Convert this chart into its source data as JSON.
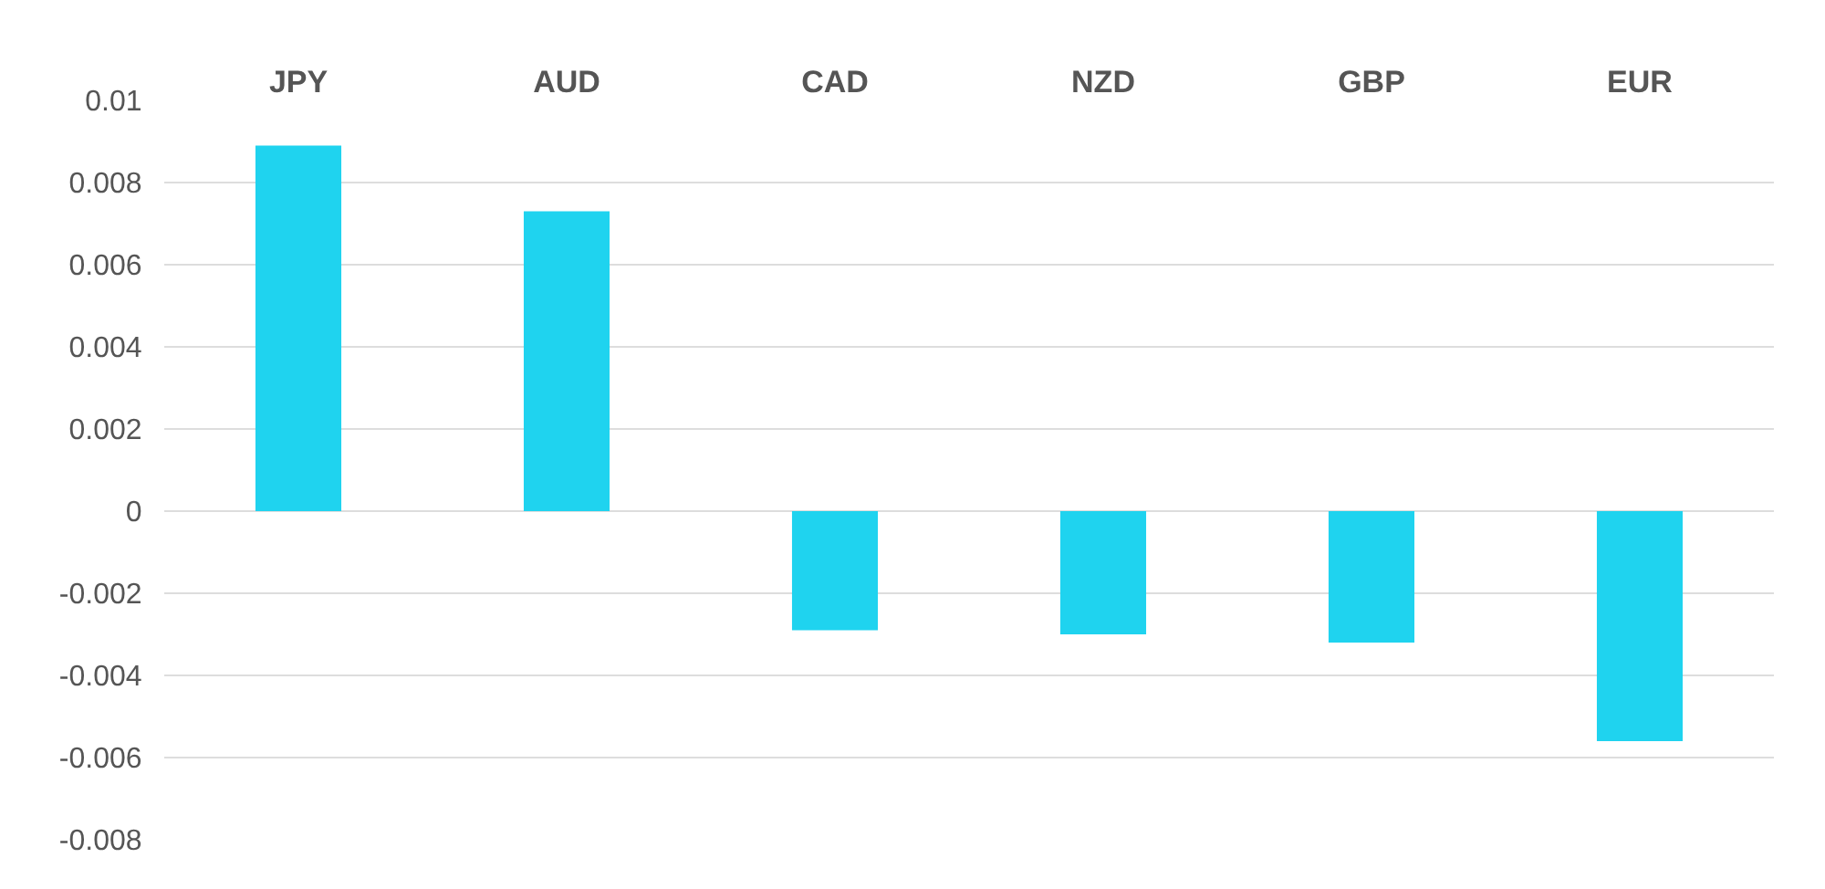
{
  "chart_data": {
    "type": "bar",
    "categories": [
      "JPY",
      "AUD",
      "CAD",
      "NZD",
      "GBP",
      "EUR"
    ],
    "values": [
      0.0089,
      0.0073,
      -0.0029,
      -0.003,
      -0.0032,
      -0.0056
    ],
    "color": "#1fd3ef",
    "ylim": [
      -0.008,
      0.01
    ],
    "yticks": [
      0.01,
      0.008,
      0.006,
      0.004,
      0.002,
      0,
      -0.002,
      -0.004,
      -0.006,
      -0.008
    ],
    "grid": "y"
  }
}
